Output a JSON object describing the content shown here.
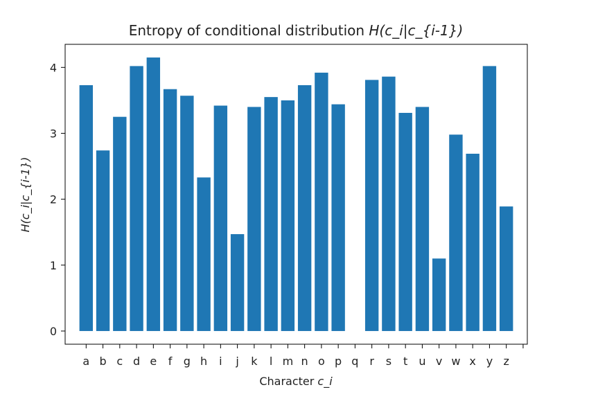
{
  "chart_data": {
    "type": "bar",
    "title_prefix": "Entropy of conditional distribution ",
    "title_math": "H(c_i|c_{i-1})",
    "xlabel_prefix": "Character ",
    "xlabel_math": "c_i",
    "ylabel": "H(c_i|c_{i-1})",
    "categories": [
      "a",
      "b",
      "c",
      "d",
      "e",
      "f",
      "g",
      "h",
      "i",
      "j",
      "k",
      "l",
      "m",
      "n",
      "o",
      "p",
      "q",
      "r",
      "s",
      "t",
      "u",
      "v",
      "w",
      "x",
      "y",
      "z"
    ],
    "values": [
      3.73,
      2.74,
      3.25,
      4.02,
      4.15,
      3.67,
      3.57,
      2.33,
      3.42,
      1.47,
      3.4,
      3.55,
      3.5,
      3.73,
      3.92,
      3.44,
      0.0,
      3.81,
      3.86,
      3.31,
      3.4,
      1.1,
      2.98,
      2.69,
      4.02,
      1.89
    ],
    "yticks": [
      0,
      1,
      2,
      3,
      4
    ],
    "ylim": [
      -0.2,
      4.35
    ],
    "grid": false,
    "legend": "none",
    "colors": {
      "bar": "#1f77b4",
      "axis": "#000000",
      "text": "#222222"
    }
  }
}
